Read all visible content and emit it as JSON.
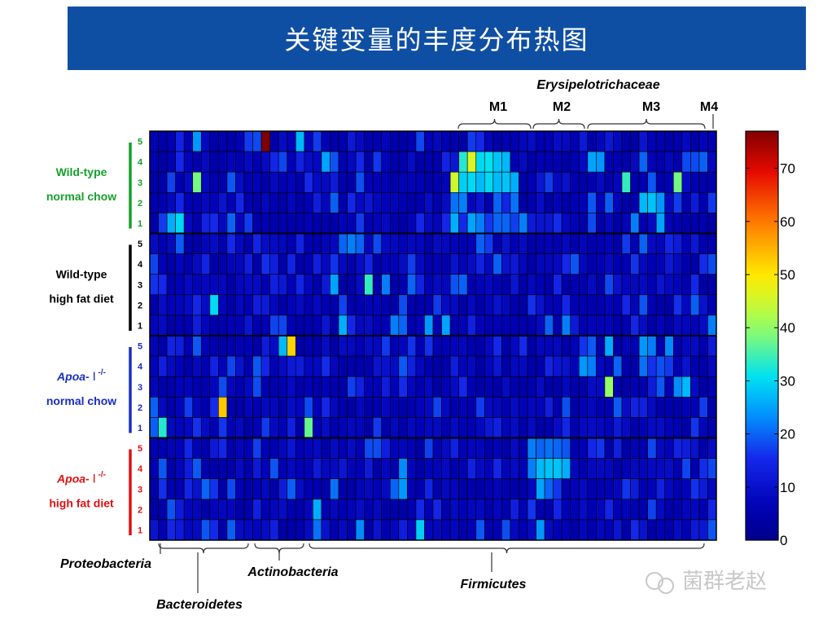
{
  "title": "关键变量的丰度分布热图",
  "family_label": "Erysipelotrichaceae",
  "modules": [
    "M1",
    "M2",
    "M3",
    "M4"
  ],
  "groups": [
    {
      "line1": "Wild-type",
      "line1b": "",
      "line1sup": "",
      "line2": "normal chow",
      "color": "#16a02a"
    },
    {
      "line1": "Wild-type",
      "line1b": "",
      "line1sup": "",
      "line2": "high fat diet",
      "color": "#000000"
    },
    {
      "line1": "Apoa-",
      "line1b": "Ⅰ",
      "line1sup": "-/-",
      "line2": "normal chow",
      "color": "#1a2fbf"
    },
    {
      "line1": "Apoa-",
      "line1b": "Ⅰ",
      "line1sup": "-/-",
      "line2": "high fat diet",
      "color": "#e01010"
    }
  ],
  "row_numbers": [
    "5",
    "4",
    "3",
    "2",
    "1"
  ],
  "phyla": [
    "Proteobacteria",
    "Bacteroidetes",
    "Actinobacteria",
    "Firmicutes"
  ],
  "colorbar_ticks": [
    "70",
    "60",
    "50",
    "40",
    "30",
    "20",
    "10",
    "0"
  ],
  "colorbar_range": [
    0,
    77
  ],
  "watermark": "菌群老赵",
  "colors": {
    "title_bg": "#0f4fa3",
    "cell_border": "#000000"
  }
}
